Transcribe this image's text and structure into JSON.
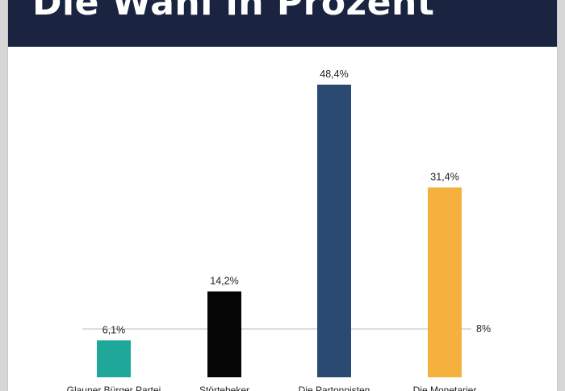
{
  "header": {
    "title": "Die Wahl in Prozent"
  },
  "chart_data": {
    "type": "bar",
    "title": "Die Wahl in Prozent",
    "categories": [
      "Glauner Bürger Partei",
      "Störtebeker",
      "Die Partonnisten",
      "Die Monetarier"
    ],
    "values": [
      6.1,
      14.2,
      48.4,
      31.4
    ],
    "value_labels": [
      "6,1%",
      "14,2%",
      "48,4%",
      "31,4%"
    ],
    "colors": [
      "#1fa89a",
      "#050505",
      "#2b4a72",
      "#f4b13e"
    ],
    "reference_line": {
      "value": 8,
      "label": "8%",
      "color": "#bdbdbd"
    },
    "ylim": [
      0,
      50
    ],
    "grid": false,
    "legend": "none"
  }
}
